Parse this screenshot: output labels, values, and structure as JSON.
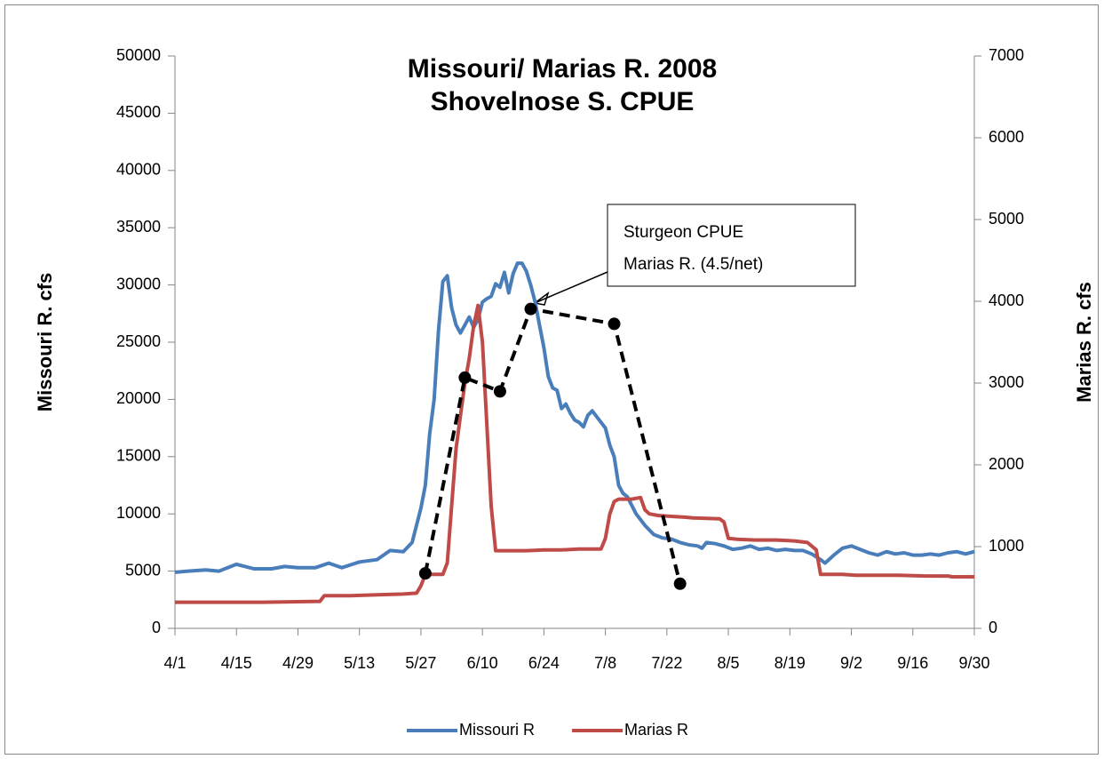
{
  "chart_data": {
    "type": "line",
    "title": [
      "Missouri/ Marias R.  2008",
      "Shovelnose S. CPUE"
    ],
    "ylabel": "Missouri R. cfs",
    "y2label": "Marias R. cfs",
    "xlim": [
      0,
      182
    ],
    "xticks": [
      {
        "value": 0,
        "label": "4/1"
      },
      {
        "value": 14,
        "label": "4/15"
      },
      {
        "value": 28,
        "label": "4/29"
      },
      {
        "value": 42,
        "label": "5/13"
      },
      {
        "value": 56,
        "label": "5/27"
      },
      {
        "value": 70,
        "label": "6/10"
      },
      {
        "value": 84,
        "label": "6/24"
      },
      {
        "value": 98,
        "label": "7/8"
      },
      {
        "value": 112,
        "label": "7/22"
      },
      {
        "value": 126,
        "label": "8/5"
      },
      {
        "value": 140,
        "label": "8/19"
      },
      {
        "value": 154,
        "label": "9/2"
      },
      {
        "value": 168,
        "label": "9/16"
      },
      {
        "value": 182,
        "label": "9/30"
      }
    ],
    "ylim": [
      0,
      50000
    ],
    "yticks": [
      0,
      5000,
      10000,
      15000,
      20000,
      25000,
      30000,
      35000,
      40000,
      45000,
      50000
    ],
    "y2lim": [
      0,
      7000
    ],
    "y2ticks": [
      0,
      1000,
      2000,
      3000,
      4000,
      5000,
      6000,
      7000
    ],
    "legend": "bottom",
    "grid": false,
    "annotation": [
      "Sturgeon CPUE",
      "Marias R. (4.5/net)"
    ],
    "series": [
      {
        "name": "Missouri R",
        "color": "#4a7ebb",
        "axis": "y",
        "x": [
          0,
          3,
          7,
          10,
          14,
          18,
          22,
          25,
          28,
          32,
          35,
          38,
          42,
          46,
          49,
          52,
          54,
          56,
          57,
          58,
          59,
          60,
          61,
          62,
          63,
          64,
          65,
          66,
          67,
          68,
          69,
          70,
          71,
          72,
          73,
          74,
          75,
          76,
          77,
          78,
          79,
          80,
          81,
          82,
          83,
          84,
          85,
          86,
          87,
          88,
          89,
          90,
          91,
          92,
          93,
          94,
          95,
          96,
          97,
          98,
          99,
          100,
          101,
          102,
          103,
          105,
          107,
          109,
          111,
          113,
          115,
          117,
          119,
          120,
          121,
          123,
          125,
          127,
          129,
          131,
          133,
          135,
          137,
          139,
          141,
          143,
          145,
          147,
          148,
          150,
          152,
          154,
          156,
          158,
          160,
          162,
          164,
          166,
          168,
          170,
          172,
          174,
          176,
          178,
          180,
          182
        ],
        "values": [
          4900,
          5000,
          5100,
          5000,
          5600,
          5200,
          5200,
          5400,
          5300,
          5300,
          5700,
          5300,
          5800,
          6000,
          6800,
          6700,
          7500,
          10500,
          12500,
          17000,
          20000,
          26000,
          30300,
          30800,
          28000,
          26500,
          25800,
          26500,
          27200,
          26300,
          27000,
          28500,
          28800,
          29000,
          30100,
          29800,
          31100,
          29300,
          31000,
          31900,
          31900,
          31200,
          30000,
          28500,
          26500,
          24500,
          22000,
          21000,
          20800,
          19200,
          19600,
          18800,
          18200,
          18000,
          17600,
          18600,
          19000,
          18500,
          18000,
          17500,
          16000,
          15000,
          12500,
          11800,
          11500,
          10000,
          9000,
          8200,
          7900,
          7800,
          7500,
          7300,
          7200,
          7000,
          7500,
          7400,
          7200,
          6900,
          7000,
          7200,
          6900,
          7000,
          6800,
          6900,
          6800,
          6800,
          6500,
          6000,
          5700,
          6400,
          7000,
          7200,
          6900,
          6600,
          6400,
          6700,
          6500,
          6600,
          6400,
          6400,
          6500,
          6400,
          6600,
          6700,
          6500,
          6700
        ]
      },
      {
        "name": "Marias R",
        "color": "#be4b48",
        "axis": "y2",
        "x": [
          0,
          20,
          33,
          34,
          40,
          46,
          52,
          55,
          56,
          57,
          61,
          62,
          63,
          64,
          65,
          66,
          67,
          68,
          69,
          70,
          71,
          72,
          73,
          74,
          80,
          84,
          88,
          92,
          97,
          98,
          99,
          100,
          101,
          104,
          106,
          107,
          108,
          110,
          113,
          116,
          118,
          124,
          125,
          126,
          128,
          132,
          137,
          141,
          144,
          146,
          147,
          152,
          155,
          164,
          171,
          176,
          177,
          182
        ],
        "values": [
          320,
          320,
          330,
          400,
          400,
          410,
          420,
          430,
          520,
          660,
          660,
          800,
          1500,
          2200,
          2600,
          3000,
          3300,
          3700,
          3950,
          3500,
          2500,
          1500,
          950,
          950,
          950,
          960,
          960,
          970,
          970,
          1100,
          1400,
          1550,
          1580,
          1580,
          1600,
          1450,
          1400,
          1380,
          1370,
          1360,
          1350,
          1340,
          1300,
          1100,
          1090,
          1080,
          1080,
          1070,
          1050,
          960,
          660,
          660,
          650,
          650,
          640,
          640,
          630,
          630
        ]
      },
      {
        "color": "#000000",
        "axis": "y",
        "dash": true,
        "markers": true,
        "x": [
          57,
          66,
          74,
          81,
          100,
          115
        ],
        "values": [
          4800,
          21900,
          20700,
          27900,
          26600,
          3900
        ]
      }
    ]
  }
}
